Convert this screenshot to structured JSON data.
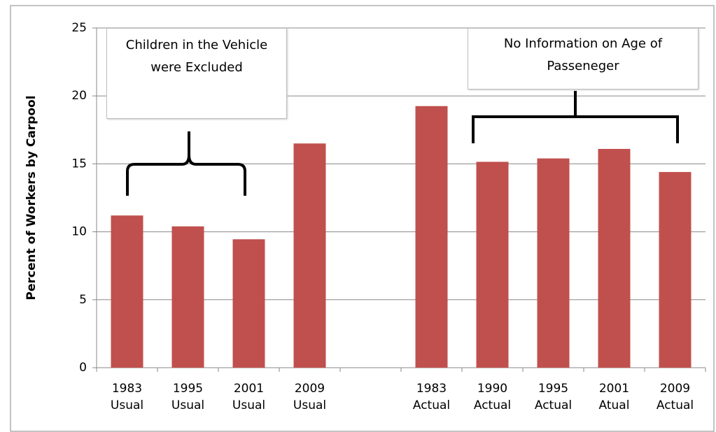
{
  "chart_data": {
    "type": "bar",
    "y_label": "Percent of Workers by Carpool",
    "categories": [
      "1983 Usual",
      "1995 Usual",
      "2001 Usual",
      "2009 Usual",
      null,
      "1983 Actual",
      "1990 Actual",
      "1995 Actual",
      "2001 Atual",
      "2009 Actual"
    ],
    "values": [
      11.2,
      10.4,
      9.45,
      16.5,
      null,
      19.25,
      15.15,
      15.4,
      16.1,
      14.4
    ],
    "color": "#c0504d",
    "ylim": [
      0,
      25
    ],
    "yticks": [
      0,
      5,
      10,
      15,
      20,
      25
    ],
    "grid": true,
    "annotations": [
      "Children in the Vehicle were Excluded",
      "No Information on Age of Passeneger"
    ]
  }
}
